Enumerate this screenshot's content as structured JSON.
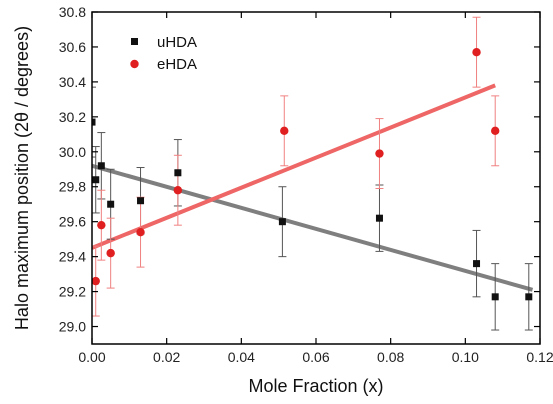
{
  "chart_data": {
    "type": "scatter",
    "xlabel": "Mole Fraction (x)",
    "ylabel": "Halo maximum position (2θ / degrees)",
    "xlim": [
      0.0,
      0.12
    ],
    "ylim": [
      28.9,
      30.8
    ],
    "x_ticks": [
      "0.00",
      "0.02",
      "0.04",
      "0.06",
      "0.08",
      "0.10",
      "0.12"
    ],
    "y_ticks": [
      "29.0",
      "29.2",
      "29.4",
      "29.6",
      "29.8",
      "30.0",
      "30.2",
      "30.4",
      "30.6",
      "30.8"
    ],
    "legend_position": "top-left",
    "grid": false,
    "series": [
      {
        "name": "uHDA",
        "color": "#111111",
        "marker": "square",
        "error_color": "#555555",
        "points": [
          {
            "x": 0.0,
            "y": 30.17,
            "err": 0.2
          },
          {
            "x": 0.001,
            "y": 29.84,
            "err": 0.19
          },
          {
            "x": 0.0025,
            "y": 29.92,
            "err": 0.19
          },
          {
            "x": 0.005,
            "y": 29.7,
            "err": 0.2
          },
          {
            "x": 0.013,
            "y": 29.72,
            "err": 0.19
          },
          {
            "x": 0.023,
            "y": 29.88,
            "err": 0.19
          },
          {
            "x": 0.051,
            "y": 29.6,
            "err": 0.2
          },
          {
            "x": 0.077,
            "y": 29.62,
            "err": 0.19
          },
          {
            "x": 0.103,
            "y": 29.36,
            "err": 0.19
          },
          {
            "x": 0.108,
            "y": 29.17,
            "err": 0.19
          },
          {
            "x": 0.117,
            "y": 29.17,
            "err": 0.19
          }
        ],
        "fit": {
          "x": [
            0.0,
            0.118
          ],
          "y": [
            29.92,
            29.21
          ],
          "color": "#7f7f7f"
        }
      },
      {
        "name": "eHDA",
        "color": "#e02020",
        "marker": "circle",
        "error_color": "#f08080",
        "points": [
          {
            "x": 0.001,
            "y": 29.26,
            "err": 0.2
          },
          {
            "x": 0.0025,
            "y": 29.58,
            "err": 0.2
          },
          {
            "x": 0.005,
            "y": 29.42,
            "err": 0.2
          },
          {
            "x": 0.013,
            "y": 29.54,
            "err": 0.2
          },
          {
            "x": 0.023,
            "y": 29.78,
            "err": 0.2
          },
          {
            "x": 0.0515,
            "y": 30.12,
            "err": 0.2
          },
          {
            "x": 0.077,
            "y": 29.99,
            "err": 0.2
          },
          {
            "x": 0.103,
            "y": 30.57,
            "err": 0.2
          },
          {
            "x": 0.108,
            "y": 30.12,
            "err": 0.2
          }
        ],
        "fit": {
          "x": [
            0.0,
            0.108
          ],
          "y": [
            29.45,
            30.38
          ],
          "color": "#ee6666"
        }
      }
    ]
  }
}
